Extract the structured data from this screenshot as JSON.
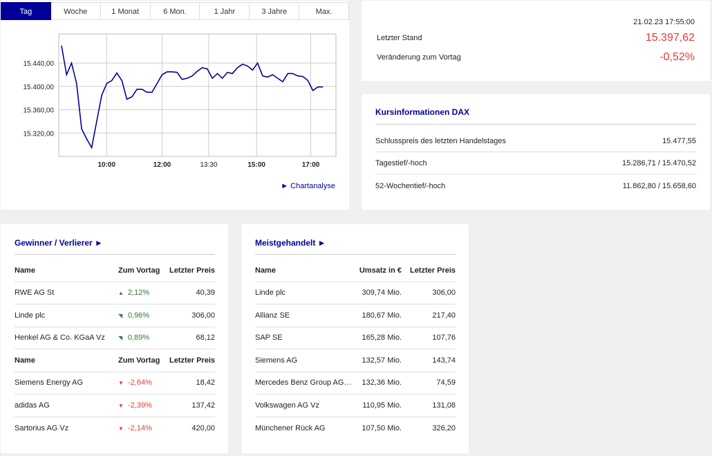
{
  "tabs": [
    "Tag",
    "Woche",
    "1 Monat",
    "6 Mon.",
    "1 Jahr",
    "3 Jahre",
    "Max."
  ],
  "active_tab": 0,
  "chart_data": {
    "type": "line",
    "x_ticks": [
      "10:00",
      "12:00",
      "13:30",
      "15:00",
      "17:00"
    ],
    "y_ticks": [
      "15.440,00",
      "15.400,00",
      "15.360,00",
      "15.320,00"
    ],
    "y_tick_values": [
      15440,
      15400,
      15360,
      15320
    ],
    "ylim": [
      15280,
      15490
    ],
    "series": [
      {
        "color": "#000099",
        "x": [
          0,
          3,
          6,
          9,
          12,
          15,
          18,
          21,
          24,
          27,
          30,
          33,
          36,
          39,
          42,
          45,
          48,
          51,
          54,
          57,
          60,
          63,
          66,
          69,
          72,
          75,
          78,
          81,
          84,
          87,
          90,
          93,
          96,
          99,
          102,
          105,
          108,
          111,
          114,
          117,
          120,
          123,
          126,
          129,
          132,
          135,
          138,
          141,
          144,
          147,
          150,
          153,
          156
        ],
        "values": [
          15470,
          15420,
          15440,
          15405,
          15327,
          15310,
          15295,
          15340,
          15385,
          15405,
          15410,
          15423,
          15410,
          15378,
          15382,
          15395,
          15395,
          15390,
          15390,
          15405,
          15420,
          15425,
          15425,
          15424,
          15412,
          15414,
          15418,
          15426,
          15432,
          15430,
          15414,
          15422,
          15414,
          15424,
          15422,
          15432,
          15438,
          15435,
          15428,
          15440,
          15418,
          15416,
          15420,
          15414,
          15408,
          15422,
          15422,
          15418,
          15417,
          15410,
          15393,
          15399,
          15399
        ]
      }
    ],
    "grid": true
  },
  "chart_link": "Chartanalyse",
  "quote": {
    "datetime": "21.02.23 17:55:00",
    "last_label": "Letzter Stand",
    "last_value": "15.397,62",
    "change_label": "Veränderung zum Vortag",
    "change_value": "-0,52%"
  },
  "info": {
    "title": "Kursinformationen DAX",
    "rows": [
      {
        "label": "Schlusspreis des letzten Handelstages",
        "value": "15.477,55"
      },
      {
        "label": "Tagestief/-hoch",
        "value": "15.286,71 / 15.470,52"
      },
      {
        "label": "52-Wochentief/-hoch",
        "value": "11.862,80 / 15.658,60"
      }
    ]
  },
  "gewinner": {
    "title": "Gewinner / Verlierer ►",
    "head": [
      "Name",
      "Zum Vortag",
      "Letzter Preis"
    ],
    "up_rows": [
      {
        "name": "RWE AG St",
        "change": "2,12%",
        "price": "40,39",
        "arrow": "▲"
      },
      {
        "name": "Linde plc",
        "change": "0,96%",
        "price": "306,00",
        "arrow": "◥"
      },
      {
        "name": "Henkel AG & Co. KGaA Vz",
        "change": "0,89%",
        "price": "68,12",
        "arrow": "◥"
      }
    ],
    "down_rows": [
      {
        "name": "Siemens Energy AG",
        "change": "-2,64%",
        "price": "18,42",
        "arrow": "▼"
      },
      {
        "name": "adidas AG",
        "change": "-2,39%",
        "price": "137,42",
        "arrow": "▼"
      },
      {
        "name": "Sartorius AG Vz",
        "change": "-2,14%",
        "price": "420,00",
        "arrow": "▼"
      }
    ]
  },
  "meist": {
    "title": "Meistgehandelt ►",
    "head": [
      "Name",
      "Umsatz in €",
      "Letzter Preis"
    ],
    "rows": [
      {
        "name": "Linde plc",
        "umsatz": "309,74 Mio.",
        "price": "306,00"
      },
      {
        "name": "Allianz SE",
        "umsatz": "180,67 Mio.",
        "price": "217,40"
      },
      {
        "name": "SAP SE",
        "umsatz": "165,28 Mio.",
        "price": "107,76"
      },
      {
        "name": "Siemens AG",
        "umsatz": "132,57 Mio.",
        "price": "143,74"
      },
      {
        "name": "Mercedes Benz Group AG…",
        "umsatz": "132,36 Mio.",
        "price": "74,59"
      },
      {
        "name": "Volkswagen AG Vz",
        "umsatz": "110,95 Mio.",
        "price": "131,08"
      },
      {
        "name": "Münchener Rück AG",
        "umsatz": "107,50 Mio.",
        "price": "326,20"
      }
    ]
  }
}
